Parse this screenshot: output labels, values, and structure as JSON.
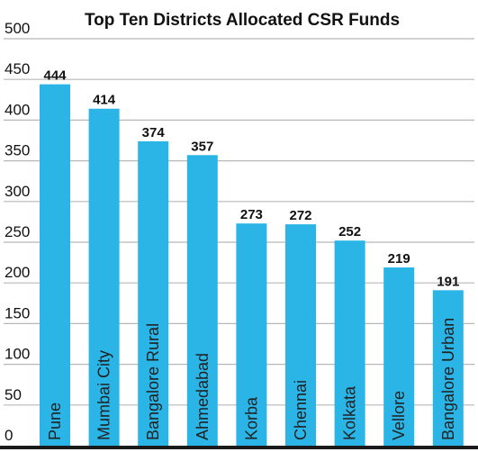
{
  "chart_data": {
    "type": "bar",
    "title": "Top Ten Districts Allocated CSR Funds",
    "xlabel": "",
    "ylabel": "",
    "categories": [
      "Pune",
      "Mumbai City",
      "Bangalore Rural",
      "Ahmedabad",
      "Korba",
      "Chennai",
      "Kolkata",
      "Vellore",
      "Bangalore Urban"
    ],
    "values": [
      444,
      414,
      374,
      357,
      273,
      272,
      252,
      219,
      191
    ],
    "ylim": [
      0,
      500
    ],
    "yticks": [
      0,
      50,
      100,
      150,
      200,
      250,
      300,
      350,
      400,
      450,
      500
    ],
    "grid": true,
    "legend": "none",
    "colors": {
      "bar": "#2ab5e6",
      "grid": "#b8b8b8",
      "axis": "#1a1a1a",
      "text": "#111111",
      "category_label": "#222222"
    }
  }
}
